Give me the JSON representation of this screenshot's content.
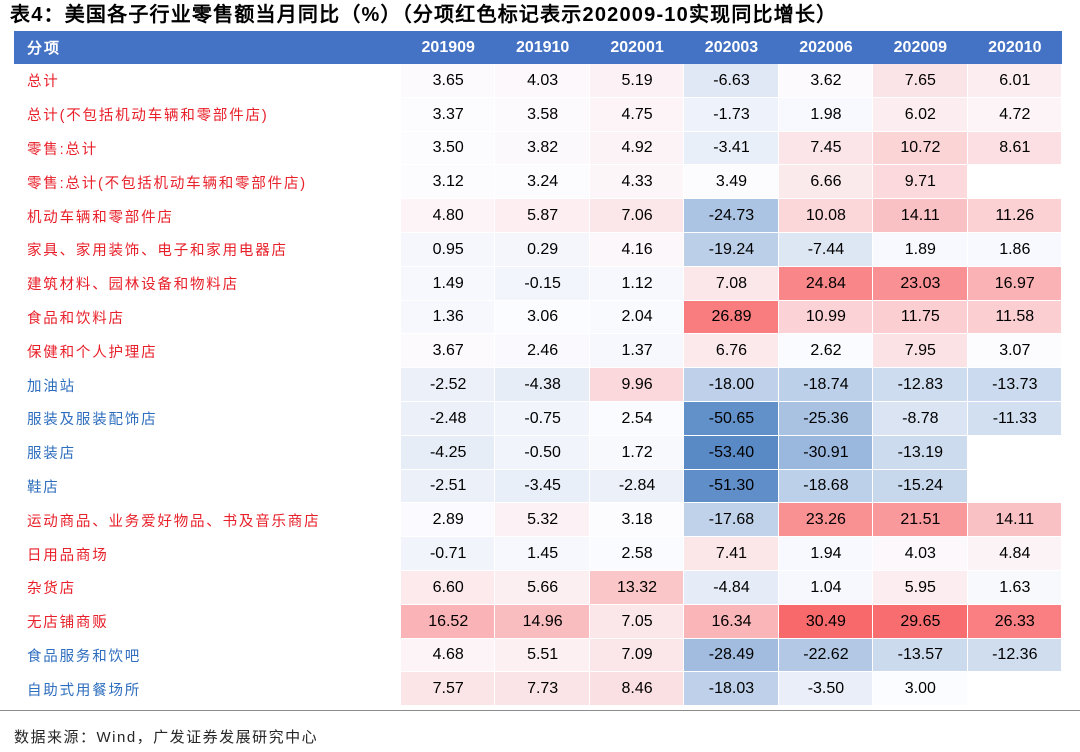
{
  "colors": {
    "header_bg": "#4472C4",
    "header_text": "#FFFFFF",
    "label_red": "#E8202A",
    "label_blue": "#2E6EBE",
    "scale_low": "#5A8AC6",
    "scale_mid": "#FCFCFF",
    "scale_high": "#F8696B"
  },
  "chart_data": {
    "type": "table",
    "title": "表4：美国各子行业零售额当月同比（%）（分项红色标记表示202009-10实现同比增长）",
    "columns": [
      "分项",
      "201909",
      "201910",
      "202001",
      "202003",
      "202006",
      "202009",
      "202010"
    ],
    "rows": [
      {
        "label": "总计",
        "label_color": "red",
        "values": [
          3.65,
          4.03,
          5.19,
          -6.63,
          3.62,
          7.65,
          6.01
        ]
      },
      {
        "label": "总计(不包括机动车辆和零部件店)",
        "label_color": "red",
        "values": [
          3.37,
          3.58,
          4.75,
          -1.73,
          1.98,
          6.02,
          4.72
        ]
      },
      {
        "label": "零售:总计",
        "label_color": "red",
        "values": [
          3.5,
          3.82,
          4.92,
          -3.41,
          7.45,
          10.72,
          8.61
        ]
      },
      {
        "label": "零售:总计(不包括机动车辆和零部件店)",
        "label_color": "red",
        "values": [
          3.12,
          3.24,
          4.33,
          3.49,
          6.66,
          9.71,
          null
        ]
      },
      {
        "label": "机动车辆和零部件店",
        "label_color": "red",
        "values": [
          4.8,
          5.87,
          7.06,
          -24.73,
          10.08,
          14.11,
          11.26
        ]
      },
      {
        "label": "家具、家用装饰、电子和家用电器店",
        "label_color": "red",
        "values": [
          0.95,
          0.29,
          4.16,
          -19.24,
          -7.44,
          1.89,
          1.86
        ]
      },
      {
        "label": "建筑材料、园林设备和物料店",
        "label_color": "red",
        "values": [
          1.49,
          -0.15,
          1.12,
          7.08,
          24.84,
          23.03,
          16.97
        ]
      },
      {
        "label": "食品和饮料店",
        "label_color": "red",
        "values": [
          1.36,
          3.06,
          2.04,
          26.89,
          10.99,
          11.75,
          11.58
        ]
      },
      {
        "label": "保健和个人护理店",
        "label_color": "red",
        "values": [
          3.67,
          2.46,
          1.37,
          6.76,
          2.62,
          7.95,
          3.07
        ]
      },
      {
        "label": "加油站",
        "label_color": "blue",
        "values": [
          -2.52,
          -4.38,
          9.96,
          -18.0,
          -18.74,
          -12.83,
          -13.73
        ]
      },
      {
        "label": "服装及服装配饰店",
        "label_color": "blue",
        "values": [
          -2.48,
          -0.75,
          2.54,
          -50.65,
          -25.36,
          -8.78,
          -11.33
        ]
      },
      {
        "label": "服装店",
        "label_color": "blue",
        "values": [
          -4.25,
          -0.5,
          1.72,
          -53.4,
          -30.91,
          -13.19,
          null
        ]
      },
      {
        "label": "鞋店",
        "label_color": "blue",
        "values": [
          -2.51,
          -3.45,
          -2.84,
          -51.3,
          -18.68,
          -15.24,
          null
        ]
      },
      {
        "label": "运动商品、业务爱好物品、书及音乐商店",
        "label_color": "red",
        "values": [
          2.89,
          5.32,
          3.18,
          -17.68,
          23.26,
          21.51,
          14.11
        ]
      },
      {
        "label": "日用品商场",
        "label_color": "red",
        "values": [
          -0.71,
          1.45,
          2.58,
          7.41,
          1.94,
          4.03,
          4.84
        ]
      },
      {
        "label": "杂货店",
        "label_color": "red",
        "values": [
          6.6,
          5.66,
          13.32,
          -4.84,
          1.04,
          5.95,
          1.63
        ]
      },
      {
        "label": "无店铺商贩",
        "label_color": "red",
        "values": [
          16.52,
          14.96,
          7.05,
          16.34,
          30.49,
          29.65,
          26.33
        ]
      },
      {
        "label": "食品服务和饮吧",
        "label_color": "blue",
        "values": [
          4.68,
          5.51,
          7.09,
          -28.49,
          -22.62,
          -13.57,
          -12.36
        ]
      },
      {
        "label": "自助式用餐场所",
        "label_color": "blue",
        "values": [
          7.57,
          7.73,
          8.46,
          -18.03,
          -3.5,
          3.0,
          null
        ]
      }
    ]
  },
  "source": "数据来源：Wind，广发证券发展研究中心"
}
